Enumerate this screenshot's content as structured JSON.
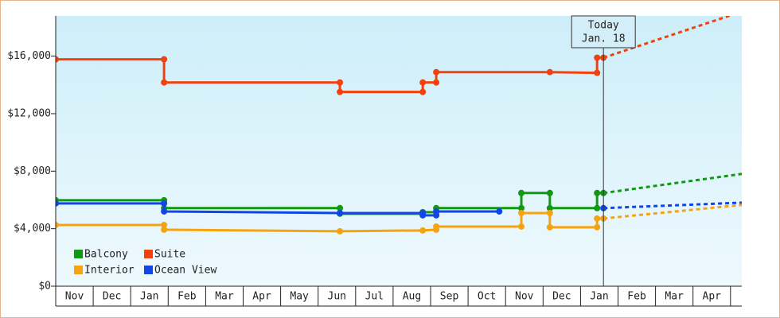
{
  "chart_data": {
    "type": "step-line",
    "categories": [
      "Nov",
      "Dec",
      "Jan",
      "Feb",
      "Mar",
      "Apr",
      "May",
      "Jun",
      "Jul",
      "Aug",
      "Sep",
      "Oct",
      "Nov",
      "Dec",
      "Jan",
      "Feb",
      "Mar",
      "Apr"
    ],
    "xlim": [
      0,
      18.3
    ],
    "ylim": [
      0,
      18800
    ],
    "yticks": [
      {
        "value": 0,
        "label": "$0"
      },
      {
        "value": 4000,
        "label": "$4,000"
      },
      {
        "value": 8000,
        "label": "$8,000"
      },
      {
        "value": 12000,
        "label": "$12,000"
      },
      {
        "value": 16000,
        "label": "$16,000"
      }
    ],
    "today": {
      "x": 14.61,
      "label": [
        "Today",
        "Jan. 18"
      ]
    },
    "series": [
      {
        "name": "Balcony",
        "color": "#129912",
        "x": [
          0,
          2.89,
          2.89,
          7.58,
          7.58,
          9.79,
          9.79,
          10.15,
          10.15,
          12.42,
          12.42,
          13.18,
          13.18,
          14.44,
          14.44,
          14.61
        ],
        "values": [
          5980,
          5980,
          5430,
          5430,
          5040,
          5040,
          5150,
          5150,
          5430,
          5430,
          6480,
          6480,
          5430,
          5430,
          6480,
          6480
        ],
        "projection_x": [
          14.61,
          18.3
        ],
        "projection_values": [
          6480,
          7810
        ]
      },
      {
        "name": "Suite",
        "color": "#f2400e",
        "x": [
          0,
          2.89,
          2.89,
          7.58,
          7.58,
          9.79,
          9.79,
          10.15,
          10.15,
          13.18,
          14.44,
          14.44,
          14.61
        ],
        "values": [
          15780,
          15780,
          14170,
          14170,
          13510,
          13510,
          14170,
          14170,
          14890,
          14890,
          14840,
          15890,
          15890
        ],
        "projection_x": [
          14.61,
          18.3
        ],
        "projection_values": [
          15890,
          19100
        ]
      },
      {
        "name": "Interior",
        "color": "#f5a40f",
        "x": [
          0,
          2.89,
          2.89,
          7.58,
          9.79,
          10.15,
          10.15,
          12.42,
          12.42,
          13.18,
          13.18,
          14.44,
          14.44,
          14.61
        ],
        "values": [
          4260,
          4260,
          3930,
          3820,
          3880,
          3930,
          4150,
          4150,
          5090,
          5090,
          4100,
          4100,
          4710,
          4710
        ],
        "projection_x": [
          14.61,
          18.3
        ],
        "projection_values": [
          4710,
          5650
        ]
      },
      {
        "name": "Ocean View",
        "color": "#1245e8",
        "x": [
          0,
          2.89,
          2.89,
          7.58,
          9.79,
          9.79,
          10.15,
          10.15,
          11.83,
          null,
          14.61
        ],
        "values": [
          5760,
          5760,
          5200,
          5090,
          5090,
          4930,
          4930,
          5200,
          5200,
          null,
          5430
        ],
        "projection_x": [
          14.61,
          18.3
        ],
        "projection_values": [
          5430,
          5810
        ]
      }
    ]
  }
}
